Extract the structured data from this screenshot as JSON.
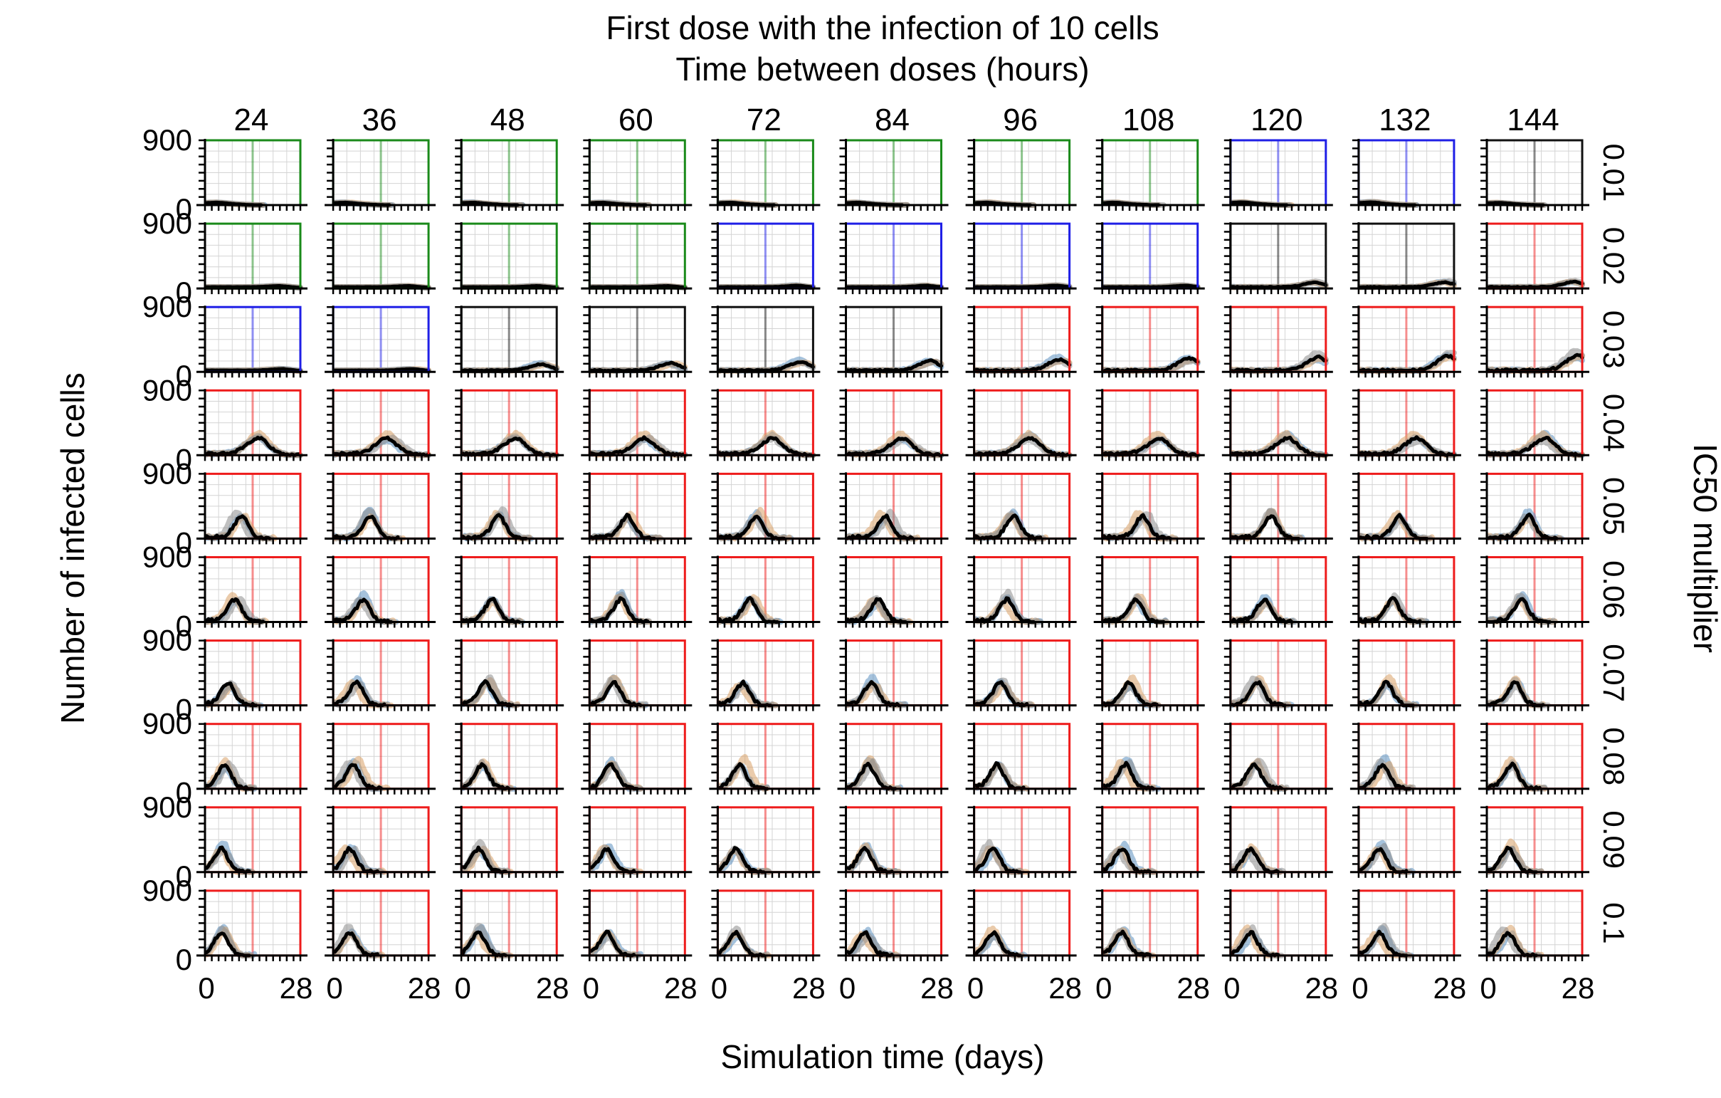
{
  "chart_data": {
    "type": "line",
    "title": "First dose with the infection of 10 cells",
    "subtitle": "Time between doses (hours)",
    "xlabel": "Simulation time (days)",
    "ylabel": "Number of infected cells",
    "right_label": "IC50 multiplier",
    "xlim": [
      0,
      28
    ],
    "ylim": [
      0,
      900
    ],
    "x_tick_labels": [
      "0",
      "28"
    ],
    "y_tick_labels": [
      "900",
      "0"
    ],
    "columns": [
      "24",
      "36",
      "48",
      "60",
      "72",
      "84",
      "96",
      "108",
      "120",
      "132",
      "144"
    ],
    "rows": [
      "0.01",
      "0.02",
      "0.03",
      "0.04",
      "0.05",
      "0.06",
      "0.07",
      "0.08",
      "0.09",
      "0.1"
    ],
    "frame_colors": {
      "G": "#1a8a1a",
      "B": "#1f1fe6",
      "K": "#111111",
      "R": "#ee1c1c"
    },
    "frame_pattern": [
      "GGGGGGGGBBK",
      "GGGGBBBBKKR",
      "BBKKKKRRRRR",
      "RRRRRRRRRRR",
      "RRRRRRRRRRR",
      "RRRRRRRRRRR",
      "RRRRRRRRRRR",
      "RRRRRRRRRRR",
      "RRRRRRRRRRR",
      "RRRRRRRRRRR"
    ],
    "row_peak_day": [
      0,
      22,
      23,
      16,
      11,
      9,
      7,
      6,
      5,
      5
    ],
    "row_peak_value": [
      10,
      60,
      180,
      220,
      300,
      300,
      300,
      320,
      310,
      300
    ],
    "series_colors": [
      "#5b8fbf",
      "#d9a066",
      "#8c8c8c",
      "#000000"
    ]
  }
}
